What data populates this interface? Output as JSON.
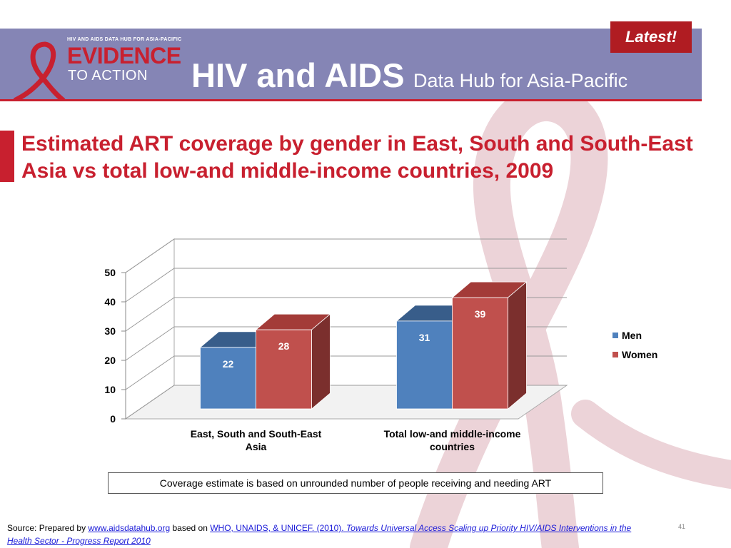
{
  "header": {
    "logo_tagline": "HIV AND AIDS DATA HUB FOR ASIA-PACIFIC",
    "logo_line1": "EVIDENCE",
    "logo_line2": "TO ACTION",
    "title_main": "HIV and AIDS",
    "title_sub": "Data Hub for Asia-Pacific",
    "latest_badge": "Latest!"
  },
  "slide": {
    "title": "Estimated ART coverage by gender in East, South and South-East Asia vs total low-and middle-income countries, 2009",
    "note": "Coverage estimate is based on unrounded number of people receiving and needing ART",
    "page_number": "41"
  },
  "source": {
    "prefix": "Source:  Prepared by",
    "link1": "www.aidsdatahub.org",
    "mid": "based on",
    "link2_plain": "WHO, UNAIDS, & UNICEF. (2010).",
    "link2_italic": "Towards Universal Access Scaling up Priority HIV/AIDS Interventions in the Health Sector - Progress Report 2010"
  },
  "colors": {
    "header_bg": "#8585b5",
    "accent_red": "#c8202f",
    "men": "#4f81bd",
    "women": "#c0504d"
  },
  "chart_data": {
    "type": "bar",
    "categories": [
      "East, South and South-East Asia",
      "Total low-and middle-income countries"
    ],
    "category_lines": [
      [
        "East, South and South-East",
        "Asia"
      ],
      [
        "Total low-and middle-income",
        "countries"
      ]
    ],
    "series": [
      {
        "name": "Men",
        "values": [
          22,
          31
        ]
      },
      {
        "name": "Women",
        "values": [
          28,
          39
        ]
      }
    ],
    "ylim": [
      0,
      50
    ],
    "yticks": [
      "0",
      "10",
      "20",
      "30",
      "40",
      "50"
    ],
    "grid": true,
    "legend": "right",
    "data_labels": true
  }
}
